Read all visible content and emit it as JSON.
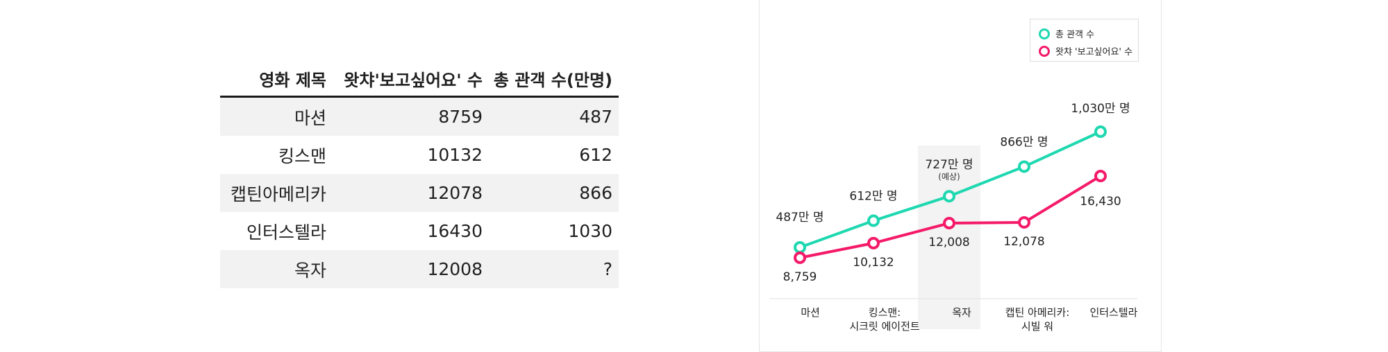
{
  "table": {
    "headers": [
      "영화 제목",
      "왓챠'보고싶어요' 수",
      "총 관객 수(만명)"
    ],
    "rows": [
      [
        "마션",
        "8759",
        "487"
      ],
      [
        "킹스맨",
        "10132",
        "612"
      ],
      [
        "캡틴아메리카",
        "12078",
        "866"
      ],
      [
        "인터스텔라",
        "16430",
        "1030"
      ],
      [
        "옥자",
        "12008",
        "?"
      ]
    ]
  },
  "chart_data": {
    "type": "line",
    "categories": [
      "마션",
      "킹스맨:\n시크릿 에이전트",
      "옥자",
      "캡틴 아메리카:\n시빌 워",
      "인터스텔라"
    ],
    "series": [
      {
        "name": "총 관객 수",
        "color": "#1ed8b0",
        "values": [
          487,
          612,
          727,
          866,
          1030
        ],
        "labels": [
          "487만 명",
          "612만 명",
          "727만 명",
          "866만 명",
          "1,030만 명"
        ],
        "ylim": [
          250,
          1050
        ]
      },
      {
        "name": "왓챠 '보고싶어요' 수",
        "color": "#f41a69",
        "values": [
          8759,
          10132,
          12008,
          12078,
          16430
        ],
        "labels": [
          "8,759",
          "10,132",
          "12,008",
          "12,078",
          "16,430"
        ],
        "ylim": [
          -500,
          22000
        ]
      }
    ],
    "highlight_category": "옥자",
    "highlight_note": "(예상)",
    "legend_position": "top-right",
    "grid": false
  }
}
